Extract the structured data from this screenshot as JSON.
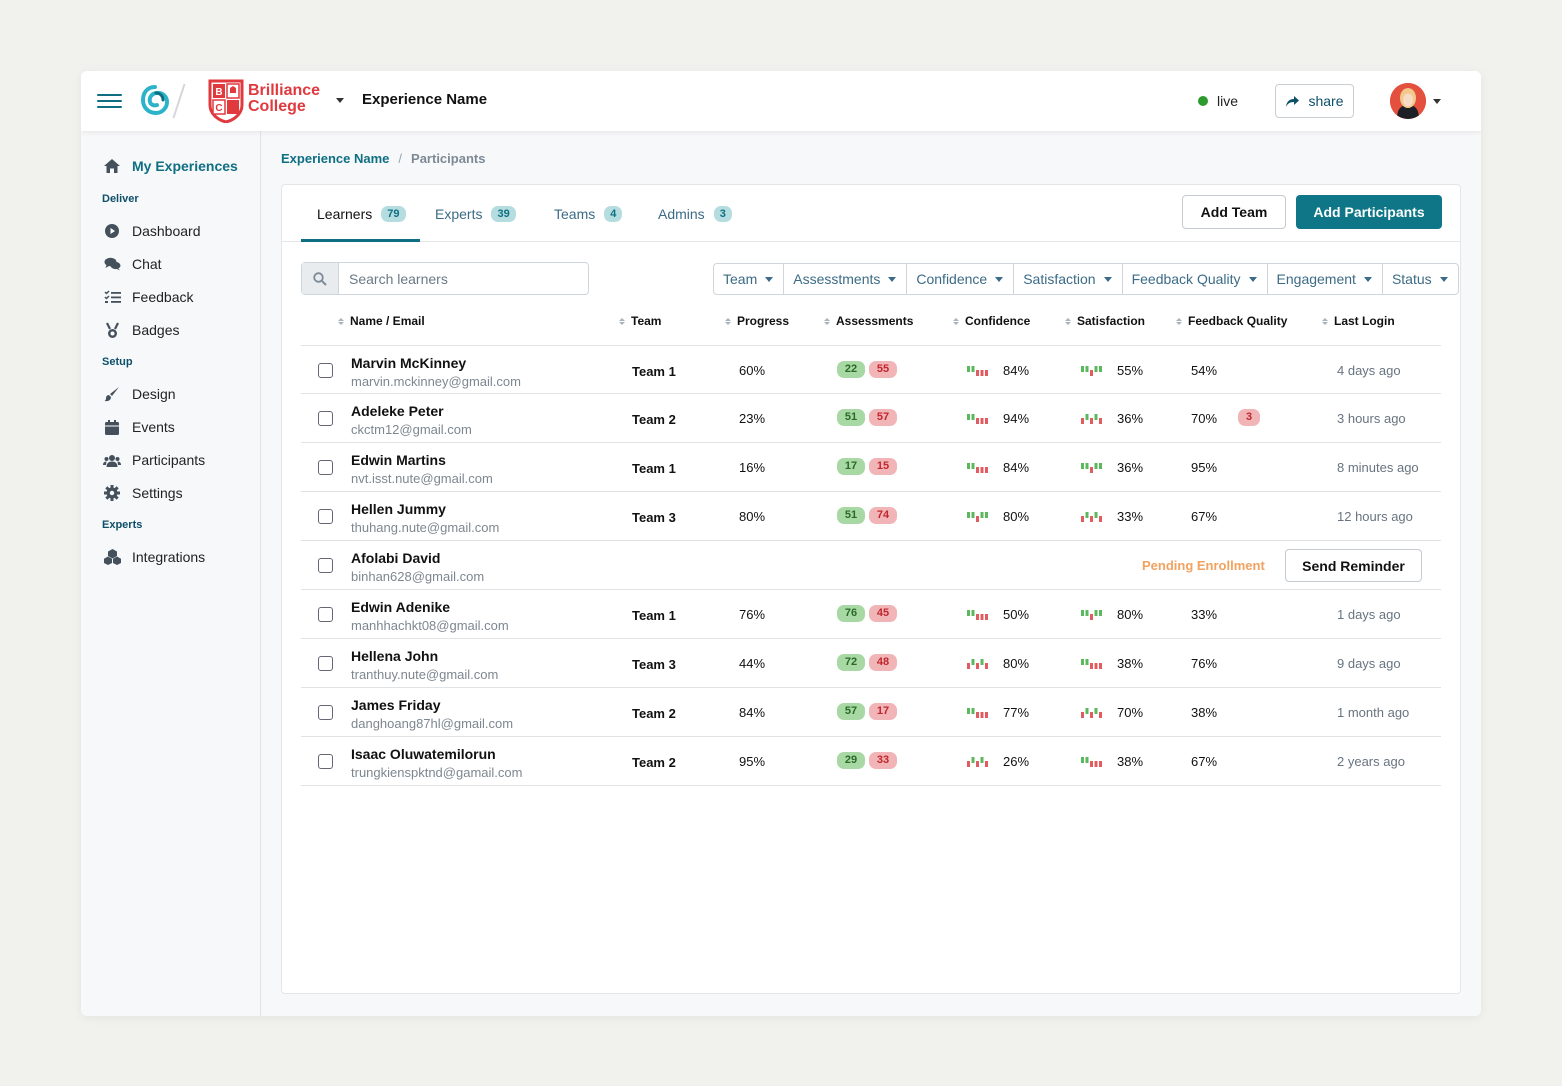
{
  "header": {
    "college_line1": "Brilliance",
    "college_line2": "College",
    "logo_letters": [
      "B",
      "C"
    ],
    "experience_name": "Experience Name",
    "live_label": "live",
    "share_label": "share",
    "accent_color": "#0e7686",
    "live_color": "#2c9a2c"
  },
  "sidebar": {
    "my_experiences": "My Experiences",
    "sections": [
      {
        "heading": "Deliver",
        "items": [
          {
            "label": "Dashboard",
            "icon": "play-circle-icon"
          },
          {
            "label": "Chat",
            "icon": "chat-icon"
          },
          {
            "label": "Feedback",
            "icon": "list-check-icon"
          },
          {
            "label": "Badges",
            "icon": "medal-icon"
          }
        ]
      },
      {
        "heading": "Setup",
        "items": [
          {
            "label": "Design",
            "icon": "brush-icon"
          },
          {
            "label": "Events",
            "icon": "calendar-icon"
          },
          {
            "label": "Participants",
            "icon": "users-icon"
          },
          {
            "label": "Settings",
            "icon": "gear-icon"
          }
        ]
      },
      {
        "heading": "Experts",
        "items": [
          {
            "label": "Integrations",
            "icon": "cubes-icon"
          }
        ]
      }
    ]
  },
  "breadcrumb": {
    "parent": "Experience Name",
    "separator": "/",
    "current": "Participants"
  },
  "tabs": [
    {
      "label": "Learners",
      "count": "79"
    },
    {
      "label": "Experts",
      "count": "39"
    },
    {
      "label": "Teams",
      "count": "4"
    },
    {
      "label": "Admins",
      "count": "3"
    }
  ],
  "actions": {
    "add_team": "Add Team",
    "add_participants": "Add Participants"
  },
  "search": {
    "placeholder": "Search learners",
    "value": ""
  },
  "filters": [
    "Team",
    "Assesstments",
    "Confidence",
    "Satisfaction",
    "Feedback Quality",
    "Engagement",
    "Status"
  ],
  "columns": [
    "Name / Email",
    "Team",
    "Progress",
    "Assessments",
    "Confidence",
    "Satisfaction",
    "Feedback Quality",
    "Last Login"
  ],
  "rows": [
    {
      "name": "Marvin McKinney",
      "email": "marvin.mckinney@gmail.com",
      "team": "Team 1",
      "progress": "60%",
      "assess_pass": "22",
      "assess_fail": "55",
      "confidence": "84%",
      "satisfaction": "55%",
      "feedback_quality": "54%",
      "last_login": "4 days ago"
    },
    {
      "name": "Adeleke Peter",
      "email": "ckctm12@gmail.com",
      "team": "Team 2",
      "progress": "23%",
      "assess_pass": "51",
      "assess_fail": "57",
      "confidence": "94%",
      "satisfaction": "36%",
      "feedback_quality": "70%",
      "feedback_badge": "3",
      "last_login": "3 hours ago"
    },
    {
      "name": "Edwin Martins",
      "email": "nvt.isst.nute@gmail.com",
      "team": "Team 1",
      "progress": "16%",
      "assess_pass": "17",
      "assess_fail": "15",
      "confidence": "84%",
      "satisfaction": "36%",
      "feedback_quality": "95%",
      "last_login": "8 minutes ago"
    },
    {
      "name": "Hellen Jummy",
      "email": "thuhang.nute@gmail.com",
      "team": "Team 3",
      "progress": "80%",
      "assess_pass": "51",
      "assess_fail": "74",
      "confidence": "80%",
      "satisfaction": "33%",
      "feedback_quality": "67%",
      "last_login": "12 hours ago"
    },
    {
      "name": "Afolabi David",
      "email": "binhan628@gmail.com",
      "pending": "Pending Enrollment",
      "reminder": "Send Reminder"
    },
    {
      "name": "Edwin Adenike",
      "email": "manhhachkt08@gmail.com",
      "team": "Team 1",
      "progress": "76%",
      "assess_pass": "76",
      "assess_fail": "45",
      "confidence": "50%",
      "satisfaction": "80%",
      "feedback_quality": "33%",
      "last_login": "1 days ago"
    },
    {
      "name": "Hellena John",
      "email": "tranthuy.nute@gmail.com",
      "team": "Team 3",
      "progress": "44%",
      "assess_pass": "72",
      "assess_fail": "48",
      "confidence": "80%",
      "satisfaction": "38%",
      "feedback_quality": "76%",
      "last_login": "9 days ago"
    },
    {
      "name": "James Friday",
      "email": "danghoang87hl@gmail.com",
      "team": "Team 2",
      "progress": "84%",
      "assess_pass": "57",
      "assess_fail": "17",
      "confidence": "77%",
      "satisfaction": "70%",
      "feedback_quality": "38%",
      "last_login": "1 month ago"
    },
    {
      "name": "Isaac Oluwatemilorun",
      "email": "trungkienspktnd@gamail.com",
      "team": "Team 2",
      "progress": "95%",
      "assess_pass": "29",
      "assess_fail": "33",
      "confidence": "26%",
      "satisfaction": "38%",
      "feedback_quality": "67%",
      "last_login": "2 years ago"
    }
  ]
}
